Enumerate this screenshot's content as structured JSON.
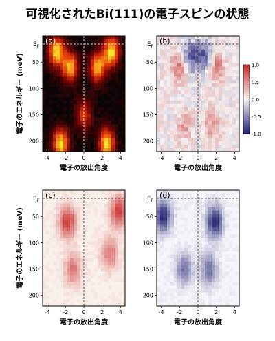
{
  "title": "可視化されたBi(111)の電子スピンの状態",
  "chart_data": [
    {
      "type": "heatmap",
      "panel_label": "(a)",
      "xlabel": "電子の放出角度",
      "ylabel": "電子のエネルギー (meV)",
      "ef_label": "E",
      "ef_sub": "F",
      "xlim": [
        -4.5,
        4.5
      ],
      "ylim": [
        0,
        220
      ],
      "x_ticks": [
        "-4",
        "-2",
        "0",
        "2",
        "4"
      ],
      "y_ticks": [
        "50",
        "100",
        "150",
        "200"
      ],
      "colormap": "black-red-yellow",
      "bands": [
        {
          "x": -3.0,
          "y": 30,
          "intensity": 1.0
        },
        {
          "x": 3.0,
          "y": 30,
          "intensity": 1.0
        },
        {
          "x": -1.5,
          "y": 60,
          "intensity": 0.9
        },
        {
          "x": 1.5,
          "y": 60,
          "intensity": 0.9
        },
        {
          "x": 0.0,
          "y": 150,
          "intensity": 0.6
        },
        {
          "x": -2.5,
          "y": 205,
          "intensity": 1.0
        },
        {
          "x": 2.5,
          "y": 205,
          "intensity": 1.0
        }
      ]
    },
    {
      "type": "heatmap",
      "panel_label": "(b)",
      "xlabel": "電子の放出角度",
      "ylabel": "",
      "ef_label": "E",
      "ef_sub": "F",
      "xlim": [
        -4.5,
        4.5
      ],
      "ylim": [
        0,
        220
      ],
      "x_ticks": [
        "-4",
        "-2",
        "0",
        "2",
        "4"
      ],
      "y_ticks": [
        "50",
        "100",
        "150",
        "200"
      ],
      "colorbar": {
        "min": -1.0,
        "max": 1.0,
        "ticks": [
          "1.0",
          "0.5",
          "0.0",
          "-0.5",
          "-1.0"
        ]
      },
      "colormap": "blue-white-red",
      "bands": [
        {
          "x": -2.0,
          "y": 60,
          "value": 0.6
        },
        {
          "x": 2.0,
          "y": 60,
          "value": 0.6
        },
        {
          "x": -0.8,
          "y": 40,
          "value": -0.7
        },
        {
          "x": 0.8,
          "y": 40,
          "value": -0.7
        },
        {
          "x": -1.5,
          "y": 170,
          "value": 0.4
        },
        {
          "x": 1.5,
          "y": 170,
          "value": 0.4
        }
      ]
    },
    {
      "type": "heatmap",
      "panel_label": "(c)",
      "xlabel": "電子の放出角度",
      "ylabel": "電子のエネルギー (meV)",
      "ef_label": "E",
      "ef_sub": "F",
      "xlim": [
        -4.5,
        4.5
      ],
      "ylim": [
        0,
        220
      ],
      "x_ticks": [
        "-4",
        "-2",
        "0",
        "2",
        "4"
      ],
      "y_ticks": [
        "50",
        "100",
        "150",
        "200"
      ],
      "colormap": "white-red",
      "bands": [
        {
          "x": -1.8,
          "y": 60,
          "intensity": 0.9
        },
        {
          "x": 3.8,
          "y": 40,
          "intensity": 0.9
        },
        {
          "x": -1.2,
          "y": 150,
          "intensity": 0.6
        },
        {
          "x": 2.8,
          "y": 120,
          "intensity": 0.6
        }
      ]
    },
    {
      "type": "heatmap",
      "panel_label": "(d)",
      "xlabel": "電子の放出角度",
      "ylabel": "",
      "ef_label": "E",
      "ef_sub": "F",
      "xlim": [
        -4.5,
        4.5
      ],
      "ylim": [
        0,
        220
      ],
      "x_ticks": [
        "-4",
        "-2",
        "0",
        "2",
        "4"
      ],
      "y_ticks": [
        "50",
        "100",
        "150",
        "200"
      ],
      "colormap": "white-blue",
      "bands": [
        {
          "x": -3.8,
          "y": 50,
          "intensity": 0.95
        },
        {
          "x": 1.8,
          "y": 60,
          "intensity": 0.95
        },
        {
          "x": -1.5,
          "y": 150,
          "intensity": 0.6
        },
        {
          "x": 1.2,
          "y": 150,
          "intensity": 0.6
        }
      ]
    }
  ]
}
